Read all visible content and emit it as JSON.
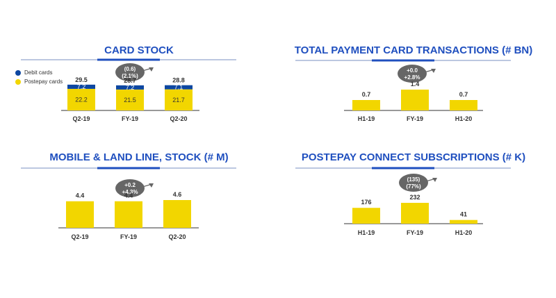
{
  "colors": {
    "title": "#1f4fbf",
    "debit": "#0d47a1",
    "postepay": "#f2d600",
    "bubble": "#666666"
  },
  "chart_data": [
    {
      "type": "bar",
      "stacked": true,
      "title": "CARD STOCK",
      "categories": [
        "Q2-19",
        "FY-19",
        "Q2-20"
      ],
      "series": [
        {
          "name": "Postepay cards",
          "values": [
            22.2,
            21.5,
            21.7
          ]
        },
        {
          "name": "Debit cards",
          "values": [
            7.2,
            7.2,
            7.1
          ]
        }
      ],
      "totals": [
        "29.5",
        "28.7",
        "28.8"
      ],
      "labels": [
        [
          "22.2",
          "21.5",
          "21.7"
        ],
        [
          "7.2",
          "7.2",
          "7.1"
        ]
      ],
      "delta": [
        "(0.6)",
        "(2.1%)"
      ],
      "legend": "top-left",
      "ylim": [
        0,
        30
      ]
    },
    {
      "type": "bar",
      "title": "TOTAL PAYMENT CARD TRANSACTIONS (# BN)",
      "categories": [
        "H1-19",
        "FY-19",
        "H1-20"
      ],
      "values": [
        0.7,
        1.4,
        0.7
      ],
      "labels": [
        "0.7",
        "1.4",
        "0.7"
      ],
      "delta": [
        "+0.0",
        "+2.8%"
      ],
      "ylim": [
        0,
        1.4
      ]
    },
    {
      "type": "bar",
      "title": "MOBILE & LAND LINE, STOCK (# M)",
      "categories": [
        "Q2-19",
        "FY-19",
        "Q2-20"
      ],
      "values": [
        4.4,
        4.4,
        4.6
      ],
      "labels": [
        "4.4",
        "4.4",
        "4.6"
      ],
      "delta": [
        "+0.2",
        "+4.3%"
      ],
      "ylim": [
        0,
        4.6
      ]
    },
    {
      "type": "bar",
      "title": "POSTEPAY CONNECT SUBSCRIPTIONS (# K)",
      "categories": [
        "H1-19",
        "FY-19",
        "H1-20"
      ],
      "values": [
        176,
        232,
        41
      ],
      "labels": [
        "176",
        "232",
        "41"
      ],
      "delta": [
        "(135)",
        "(77%)"
      ],
      "ylim": [
        0,
        232
      ]
    }
  ]
}
